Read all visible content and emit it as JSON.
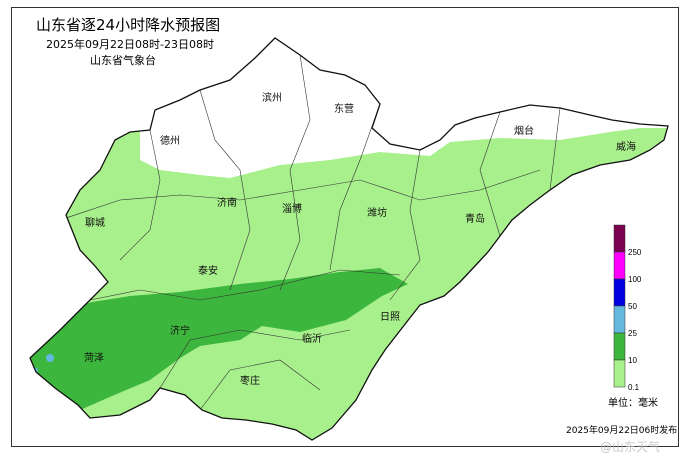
{
  "header": {
    "title": "山东省逐24小时降水预报图",
    "period": "2025年09月22日08时-23日08时",
    "agency": "山东省气象台"
  },
  "cities": [
    "滨州",
    "东营",
    "烟台",
    "威海",
    "德州",
    "济南",
    "淄博",
    "潍坊",
    "青岛",
    "聊城",
    "泰安",
    "日照",
    "济宁",
    "临沂",
    "菏泽",
    "枣庄"
  ],
  "legend": {
    "unit": "单位：毫米",
    "ticks": [
      "0.1",
      "10",
      "25",
      "50",
      "100",
      "250"
    ],
    "colors": [
      "#a8f08c",
      "#3cb63c",
      "#64b8e0",
      "#0000e0",
      "#ff00ff",
      "#7a0050"
    ]
  },
  "issued": "2025年09月22日06时发布",
  "watermark": "@山东天气"
}
